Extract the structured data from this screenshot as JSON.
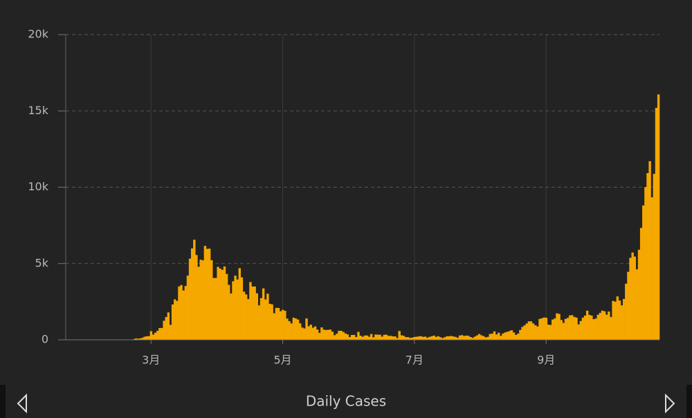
{
  "chart_data": {
    "type": "bar",
    "title": "Daily Cases",
    "categories": [
      null,
      null,
      null,
      null,
      null,
      null,
      null,
      null,
      null,
      null,
      null,
      null,
      null,
      null,
      null,
      null,
      null,
      null,
      null,
      null,
      null,
      null,
      null,
      null,
      null,
      null,
      null,
      null,
      null,
      null,
      null,
      null,
      null,
      null,
      null,
      null,
      null,
      null,
      null,
      "3月",
      null,
      null,
      null,
      null,
      null,
      null,
      null,
      null,
      null,
      null,
      null,
      null,
      null,
      null,
      null,
      null,
      null,
      null,
      null,
      null,
      null,
      null,
      null,
      null,
      null,
      null,
      null,
      null,
      null,
      null,
      null,
      null,
      null,
      null,
      null,
      null,
      null,
      null,
      null,
      null,
      null,
      null,
      null,
      null,
      null,
      null,
      null,
      null,
      null,
      null,
      null,
      null,
      null,
      null,
      null,
      null,
      null,
      null,
      null,
      null,
      "5月",
      null,
      null,
      null,
      null,
      null,
      null,
      null,
      null,
      null,
      null,
      null,
      null,
      null,
      null,
      null,
      null,
      null,
      null,
      null,
      null,
      null,
      null,
      null,
      null,
      null,
      null,
      null,
      null,
      null,
      null,
      null,
      null,
      null,
      null,
      null,
      null,
      null,
      null,
      null,
      null,
      null,
      null,
      null,
      null,
      null,
      null,
      null,
      null,
      null,
      null,
      null,
      null,
      null,
      null,
      null,
      null,
      null,
      null,
      null,
      null,
      "7月",
      null,
      null,
      null,
      null,
      null,
      null,
      null,
      null,
      null,
      null,
      null,
      null,
      null,
      null,
      null,
      null,
      null,
      null,
      null,
      null,
      null,
      null,
      null,
      null,
      null,
      null,
      null,
      null,
      null,
      null,
      null,
      null,
      null,
      null,
      null,
      null,
      null,
      null,
      null,
      null,
      null,
      null,
      null,
      null,
      null,
      null,
      null,
      null,
      null,
      null,
      null,
      null,
      null,
      null,
      null,
      null,
      null,
      null,
      null,
      null,
      "9月",
      null,
      null,
      null,
      null,
      null,
      null,
      null,
      null,
      null,
      null,
      null,
      null,
      null,
      null,
      null,
      null,
      null,
      null,
      null,
      null,
      null,
      null,
      null,
      null,
      null,
      null,
      null,
      null,
      null,
      null,
      null,
      null,
      null,
      null,
      null,
      null,
      null,
      null,
      null,
      null,
      null,
      null,
      null,
      null,
      null,
      null,
      null,
      null,
      null,
      null,
      null,
      null
    ],
    "values": [
      0,
      0,
      0,
      0,
      0,
      0,
      0,
      0,
      0,
      2,
      0,
      0,
      0,
      0,
      0,
      1,
      0,
      0,
      0,
      0,
      0,
      0,
      0,
      0,
      0,
      0,
      0,
      0,
      0,
      0,
      17,
      42,
      93,
      74,
      93,
      131,
      202,
      233,
      240,
      566,
      342,
      466,
      587,
      769,
      778,
      1247,
      1492,
      1797,
      977,
      2313,
      2651,
      2547,
      3497,
      3590,
      3233,
      3526,
      4207,
      5322,
      5986,
      6557,
      5560,
      4789,
      5249,
      5210,
      6153,
      5959,
      5974,
      5217,
      4050,
      4053,
      4782,
      4668,
      4585,
      4805,
      4316,
      3599,
      3039,
      3836,
      4204,
      3951,
      4694,
      4092,
      3153,
      2972,
      2667,
      3786,
      3493,
      3491,
      3047,
      2256,
      2729,
      3370,
      2646,
      3021,
      2357,
      2324,
      1739,
      2091,
      2086,
      1872,
      1965,
      1900,
      1389,
      1221,
      1075,
      1444,
      1401,
      1327,
      1083,
      802,
      744,
      1402,
      888,
      992,
      789,
      875,
      675,
      451,
      813,
      665,
      642,
      652,
      669,
      531,
      300,
      397,
      584,
      593,
      516,
      416,
      355,
      178,
      318,
      321,
      177,
      518,
      270,
      197,
      280,
      283,
      202,
      379,
      163,
      346,
      338,
      331,
      210,
      329,
      333,
      251,
      262,
      224,
      221,
      113,
      577,
      296,
      255,
      175,
      174,
      126,
      142,
      187,
      201,
      223,
      235,
      192,
      208,
      138,
      193,
      229,
      276,
      188,
      234,
      169,
      114,
      163,
      230,
      233,
      249,
      219,
      190,
      129,
      282,
      306,
      252,
      275,
      255,
      181,
      128,
      212,
      289,
      379,
      295,
      239,
      159,
      190,
      384,
      402,
      552,
      347,
      463,
      259,
      412,
      481,
      523,
      574,
      629,
      479,
      320,
      403,
      642,
      845,
      947,
      1071,
      1210,
      1209,
      1071,
      953,
      878,
      1367,
      1411,
      1462,
      1444,
      996,
      975,
      1326,
      1397,
      1733,
      1695,
      1297,
      1108,
      1370,
      1434,
      1597,
      1616,
      1501,
      1458,
      1008,
      1229,
      1452,
      1585,
      1907,
      1638,
      1587,
      1350,
      1392,
      1640,
      1766,
      1912,
      1869,
      1648,
      1851,
      1494,
      2548,
      2499,
      2844,
      2578,
      2257,
      2677,
      3678,
      4458,
      5372,
      5724,
      5456,
      4619,
      5901,
      7332,
      8804,
      10010,
      10925,
      11705,
      9338,
      10874,
      15199,
      16079
    ],
    "color": "#f5a800",
    "ylim": [
      0,
      20000
    ],
    "yticks": [
      0,
      {
        "value": 5000,
        "label": "5k"
      },
      {
        "value": 10000,
        "label": "10k"
      },
      {
        "value": 15000,
        "label": "15k"
      },
      {
        "value": 20000,
        "label": "20k"
      }
    ],
    "grid": true
  }
}
